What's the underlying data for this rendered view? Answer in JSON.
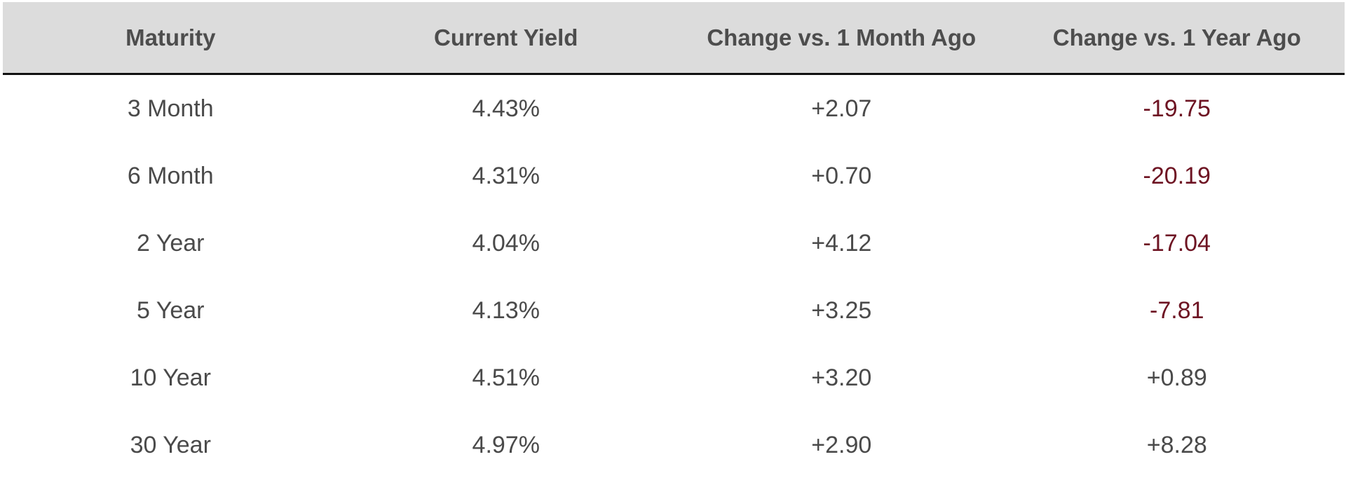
{
  "chart_data": {
    "type": "table",
    "columns": [
      "Maturity",
      "Current Yield",
      "Change vs. 1 Month Ago",
      "Change vs. 1 Year Ago"
    ],
    "rows": [
      [
        "3 Month",
        "4.43%",
        "+2.07",
        "-19.75"
      ],
      [
        "6 Month",
        "4.31%",
        "+0.70",
        "-20.19"
      ],
      [
        "2 Year",
        "4.04%",
        "+4.12",
        "-17.04"
      ],
      [
        "5 Year",
        "4.13%",
        "+3.25",
        "-7.81"
      ],
      [
        "10 Year",
        "4.51%",
        "+3.20",
        "+0.89"
      ],
      [
        "30 Year",
        "4.97%",
        "+2.90",
        "+8.28"
      ]
    ]
  },
  "colors": {
    "header_bg": "#dcdcdc",
    "text": "#4a4a4a",
    "negative": "#6e1423",
    "rule": "#111111"
  }
}
